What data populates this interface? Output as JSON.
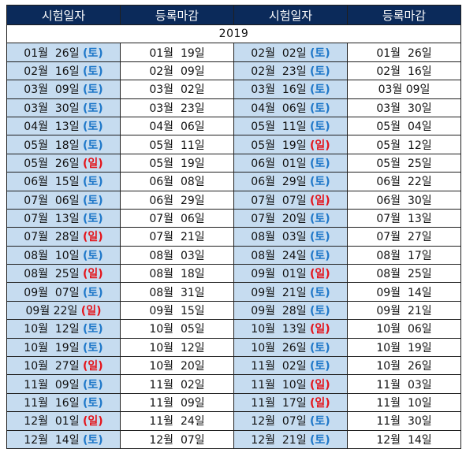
{
  "headers": [
    "시험일자",
    "등록마감",
    "시험일자",
    "등록마감"
  ],
  "year": "2019",
  "colors": {
    "header_bg": "#0b2a5a",
    "exam_bg": "#c6dcf0",
    "saturday": "#1f78c9",
    "sunday": "#e4141b",
    "year": "#e8141b"
  },
  "rows": [
    {
      "l_date": "01월  26일",
      "l_wd": "(토)",
      "l_reg": "01월  19일",
      "r_date": "02월  02일",
      "r_wd": "(토)",
      "r_reg": "01월  26일"
    },
    {
      "l_date": "02월  16일",
      "l_wd": "(토)",
      "l_reg": "02월  09일",
      "r_date": "02월  23일",
      "r_wd": "(토)",
      "r_reg": "02월  16일"
    },
    {
      "l_date": "03월  09일",
      "l_wd": "(토)",
      "l_reg": "03월  02일",
      "r_date": "03월  16일",
      "r_wd": "(토)",
      "r_reg": "03월 09일"
    },
    {
      "l_date": "03월  30일",
      "l_wd": "(토)",
      "l_reg": "03월  23일",
      "r_date": "04월  06일",
      "r_wd": "(토)",
      "r_reg": "03월  30일"
    },
    {
      "l_date": "04월  13일",
      "l_wd": "(토)",
      "l_reg": "04월  06일",
      "r_date": "05월  11일",
      "r_wd": "(토)",
      "r_reg": "05월  04일"
    },
    {
      "l_date": "05월  18일",
      "l_wd": "(토)",
      "l_reg": "05월  11일",
      "r_date": "05월  19일",
      "r_wd": "(일)",
      "r_reg": "05월  12일"
    },
    {
      "l_date": "05월  26일",
      "l_wd": "(일)",
      "l_reg": "05월  19일",
      "r_date": "06월  01일",
      "r_wd": "(토)",
      "r_reg": "05월  25일"
    },
    {
      "l_date": "06월  15일",
      "l_wd": "(토)",
      "l_reg": "06월  08일",
      "r_date": "06월  29일",
      "r_wd": "(토)",
      "r_reg": "06월  22일"
    },
    {
      "l_date": "07월  06일",
      "l_wd": "(토)",
      "l_reg": "06월  29일",
      "r_date": "07월  07일",
      "r_wd": "(일)",
      "r_reg": "06월  30일"
    },
    {
      "l_date": "07월  13일",
      "l_wd": "(토)",
      "l_reg": "07월  06일",
      "r_date": "07월  20일",
      "r_wd": "(토)",
      "r_reg": "07월  13일"
    },
    {
      "l_date": "07월  28일",
      "l_wd": "(일)",
      "l_reg": "07월  21일",
      "r_date": "08월  03일",
      "r_wd": "(토)",
      "r_reg": "07월  27일"
    },
    {
      "l_date": "08월  10일",
      "l_wd": "(토)",
      "l_reg": "08월  03일",
      "r_date": "08월  24일",
      "r_wd": "(토)",
      "r_reg": "08월  17일"
    },
    {
      "l_date": "08월  25일",
      "l_wd": "(일)",
      "l_reg": "08월  18일",
      "r_date": "09월  01일",
      "r_wd": "(일)",
      "r_reg": "08월  25일"
    },
    {
      "l_date": "09월  07일",
      "l_wd": "(토)",
      "l_reg": "08월  31일",
      "r_date": "09월  21일",
      "r_wd": "(토)",
      "r_reg": "09월  14일"
    },
    {
      "l_date": "09월 22일",
      "l_wd": "(일)",
      "l_reg": "09월  15일",
      "r_date": "09월  28일",
      "r_wd": "(토)",
      "r_reg": "09월  21일"
    },
    {
      "l_date": "10월  12일",
      "l_wd": "(토)",
      "l_reg": "10월  05일",
      "r_date": "10월  13일",
      "r_wd": "(일)",
      "r_reg": "10월  06일"
    },
    {
      "l_date": "10월  19일",
      "l_wd": "(토)",
      "l_reg": "10월  12일",
      "r_date": "10월  26일",
      "r_wd": "(토)",
      "r_reg": "10월  19일"
    },
    {
      "l_date": "10월  27일",
      "l_wd": "(일)",
      "l_reg": "10월  20일",
      "r_date": "11월  02일",
      "r_wd": "(토)",
      "r_reg": "10월  26일"
    },
    {
      "l_date": "11월  09일",
      "l_wd": "(토)",
      "l_reg": "11월  02일",
      "r_date": "11월  10일",
      "r_wd": "(일)",
      "r_reg": "11월  03일"
    },
    {
      "l_date": "11월  16일",
      "l_wd": "(토)",
      "l_reg": "11월  09일",
      "r_date": "11월  17일",
      "r_wd": "(일)",
      "r_reg": "11월  10일"
    },
    {
      "l_date": "12월  01일",
      "l_wd": "(일)",
      "l_reg": "11월  24일",
      "r_date": "12월  07일",
      "r_wd": "(토)",
      "r_reg": "11월  30일"
    },
    {
      "l_date": "12월  14일",
      "l_wd": "(토)",
      "l_reg": "12월  07일",
      "r_date": "12월  21일",
      "r_wd": "(토)",
      "r_reg": "12월  14일"
    }
  ]
}
